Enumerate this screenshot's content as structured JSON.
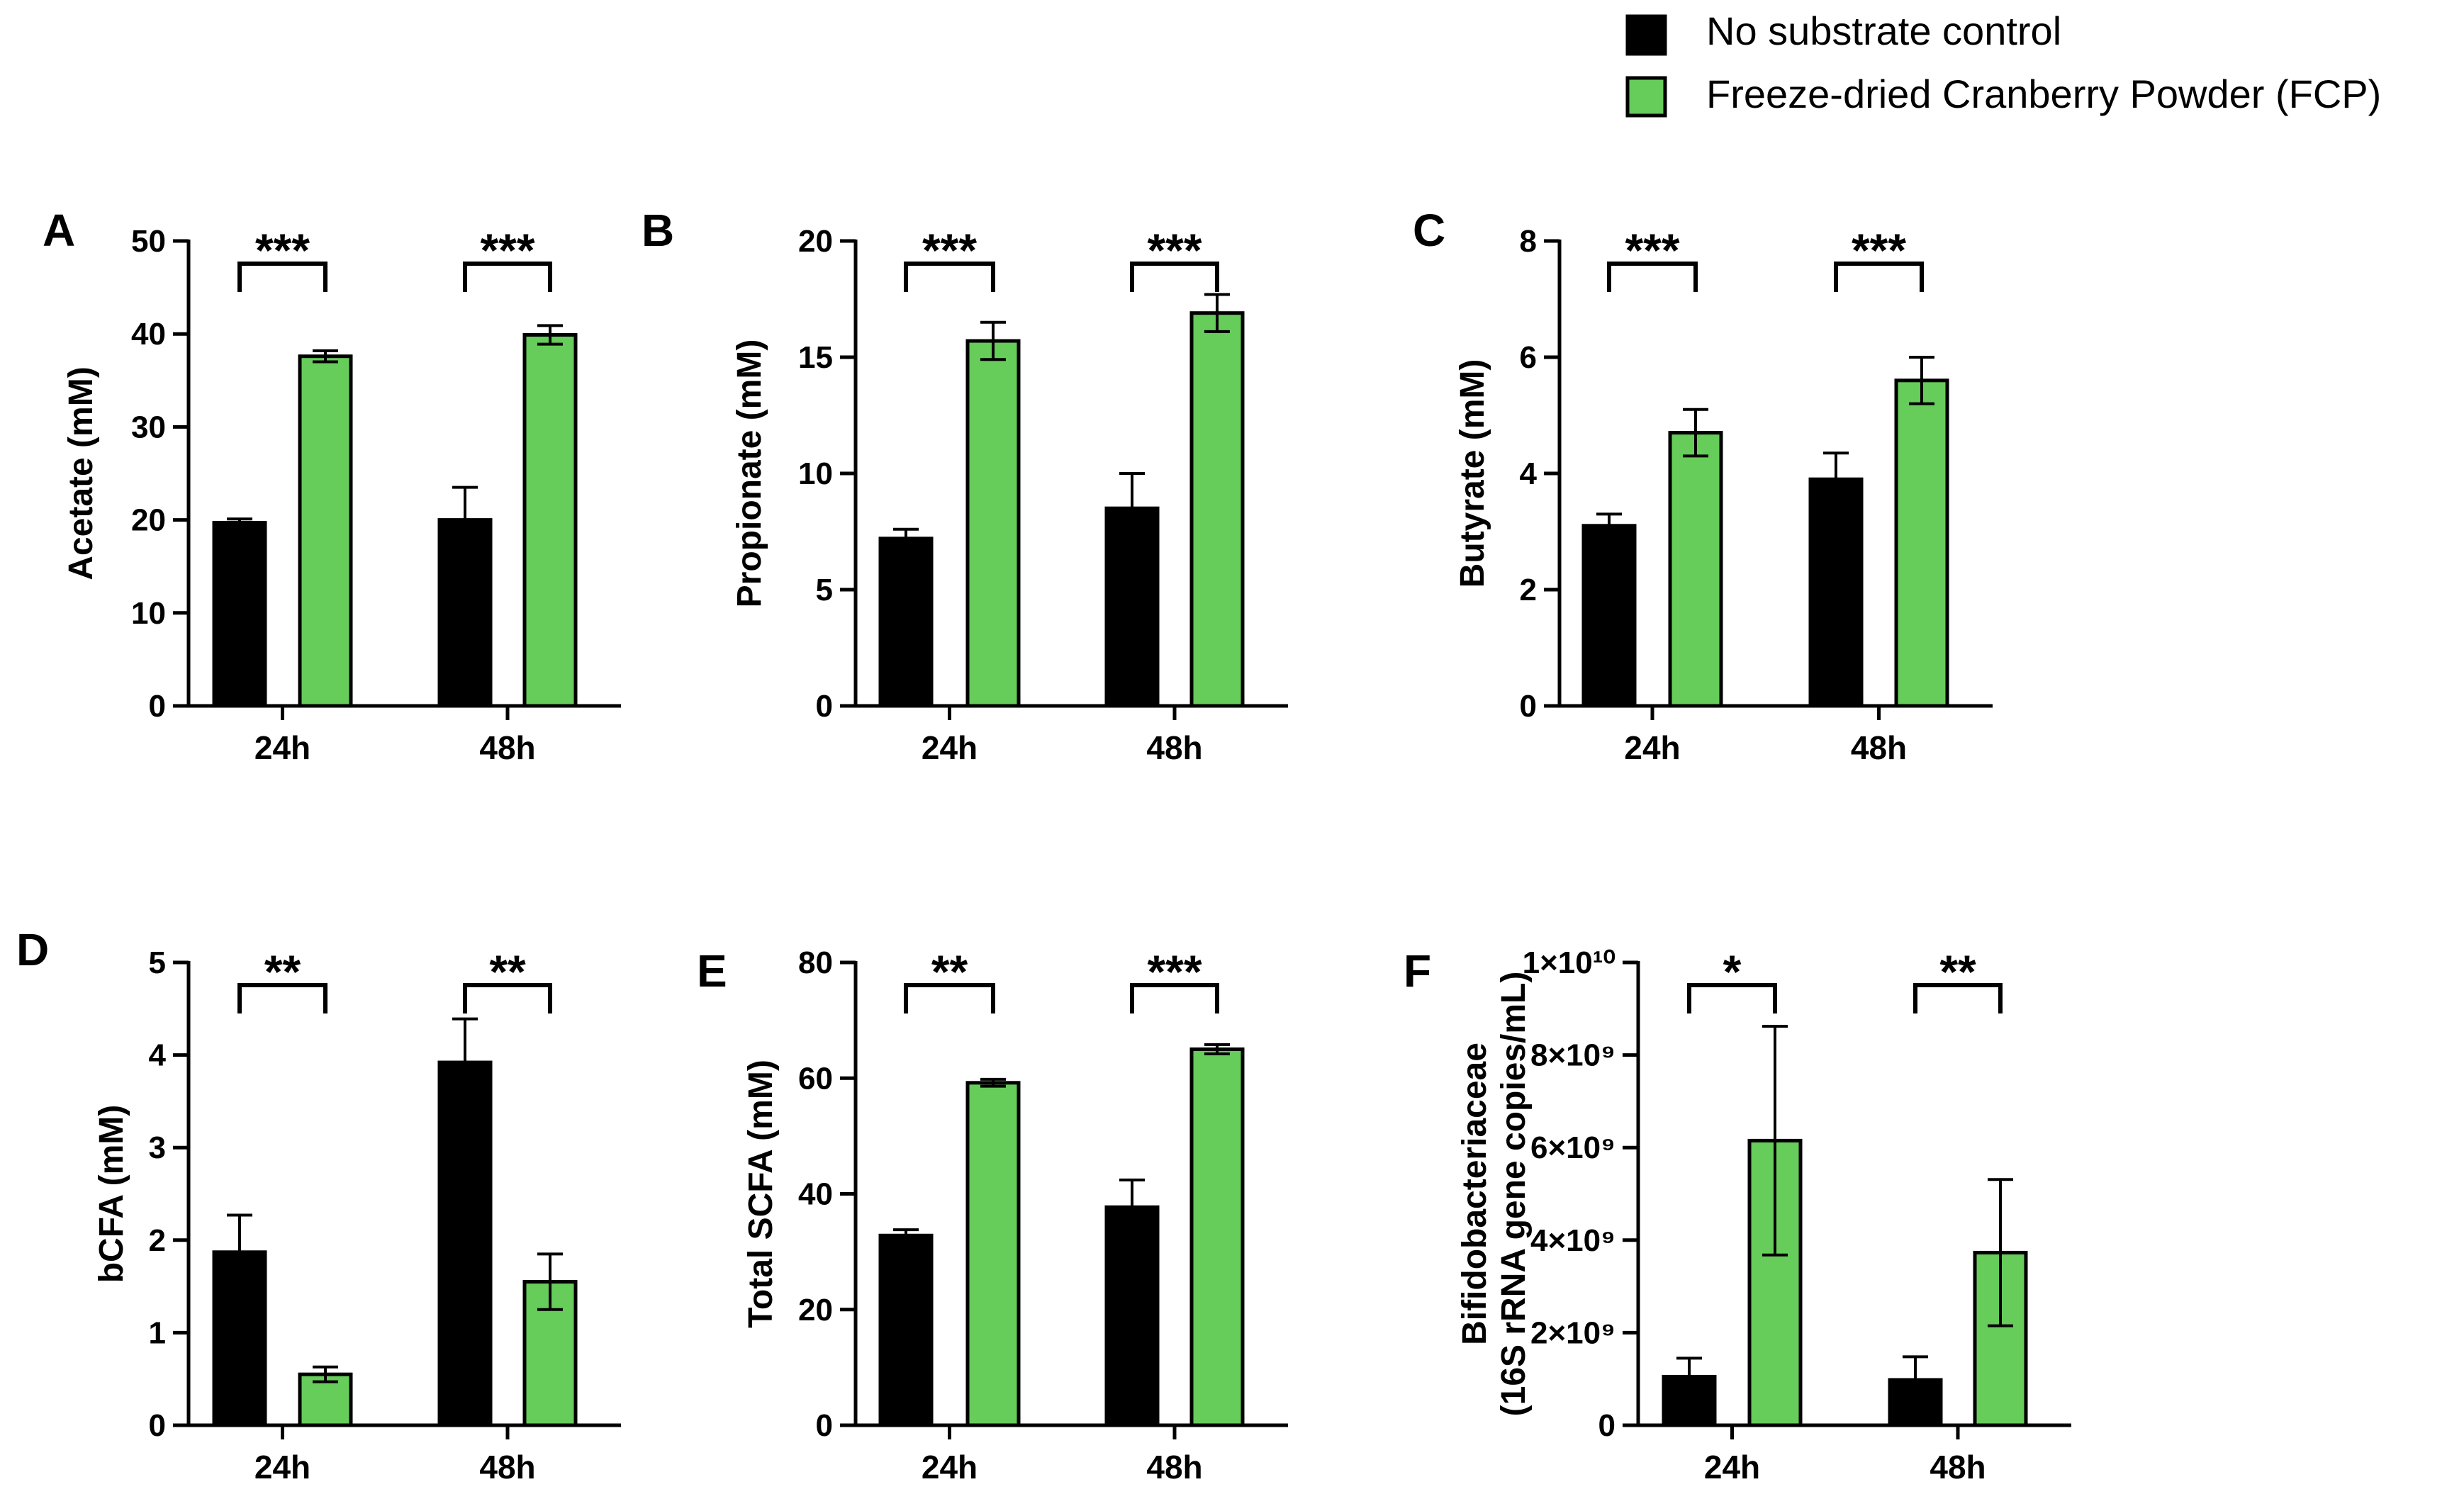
{
  "legend": {
    "items": [
      {
        "label": "No substrate control",
        "color": "#000000"
      },
      {
        "label": "Freeze-dried Cranberry Powder (FCP)",
        "color": "#66cc5a"
      }
    ]
  },
  "chart_data": [
    {
      "panel": "A",
      "type": "bar",
      "ylabel": "Acetate (mM)",
      "categories": [
        "24h",
        "48h"
      ],
      "ylim": [
        0,
        50
      ],
      "ytick_values": [
        0,
        10,
        20,
        30,
        40,
        50
      ],
      "ytick_labels": [
        "0",
        "10",
        "20",
        "30",
        "40",
        "50"
      ],
      "series": [
        {
          "name": "No substrate control",
          "values": [
            19.7,
            20.0
          ],
          "errors": [
            0.4,
            3.5
          ]
        },
        {
          "name": "Freeze-dried Cranberry Powder (FCP)",
          "values": [
            37.6,
            39.9
          ],
          "errors": [
            0.6,
            1.0
          ]
        }
      ],
      "significance": [
        "***",
        "***"
      ]
    },
    {
      "panel": "B",
      "type": "bar",
      "ylabel": "Propionate (mM)",
      "categories": [
        "24h",
        "48h"
      ],
      "ylim": [
        0,
        20
      ],
      "ytick_values": [
        0,
        5,
        10,
        15,
        20
      ],
      "ytick_labels": [
        "0",
        "5",
        "10",
        "15",
        "20"
      ],
      "series": [
        {
          "name": "No substrate control",
          "values": [
            7.2,
            8.5
          ],
          "errors": [
            0.4,
            1.5
          ]
        },
        {
          "name": "Freeze-dried Cranberry Powder (FCP)",
          "values": [
            15.7,
            16.9
          ],
          "errors": [
            0.8,
            0.8
          ]
        }
      ],
      "significance": [
        "***",
        "***"
      ]
    },
    {
      "panel": "C",
      "type": "bar",
      "ylabel": "Butyrate (mM)",
      "categories": [
        "24h",
        "48h"
      ],
      "ylim": [
        0,
        8
      ],
      "ytick_values": [
        0,
        2,
        4,
        6,
        8
      ],
      "ytick_labels": [
        "0",
        "2",
        "4",
        "6",
        "8"
      ],
      "series": [
        {
          "name": "No substrate control",
          "values": [
            3.1,
            3.9
          ],
          "errors": [
            0.2,
            0.45
          ]
        },
        {
          "name": "Freeze-dried Cranberry Powder (FCP)",
          "values": [
            4.7,
            5.6
          ],
          "errors": [
            0.4,
            0.4
          ]
        }
      ],
      "significance": [
        "***",
        "***"
      ]
    },
    {
      "panel": "D",
      "type": "bar",
      "ylabel": "bCFA (mM)",
      "categories": [
        "24h",
        "48h"
      ],
      "ylim": [
        0,
        5
      ],
      "ytick_values": [
        0,
        1,
        2,
        3,
        4,
        5
      ],
      "ytick_labels": [
        "0",
        "1",
        "2",
        "3",
        "4",
        "5"
      ],
      "series": [
        {
          "name": "No substrate control",
          "values": [
            1.87,
            3.92
          ],
          "errors": [
            0.4,
            0.47
          ]
        },
        {
          "name": "Freeze-dried Cranberry Powder (FCP)",
          "values": [
            0.55,
            1.55
          ],
          "errors": [
            0.08,
            0.3
          ]
        }
      ],
      "significance": [
        "**",
        "**"
      ]
    },
    {
      "panel": "E",
      "type": "bar",
      "ylabel": "Total SCFA (mM)",
      "categories": [
        "24h",
        "48h"
      ],
      "ylim": [
        0,
        80
      ],
      "ytick_values": [
        0,
        20,
        40,
        60,
        80
      ],
      "ytick_labels": [
        "0",
        "20",
        "40",
        "60",
        "80"
      ],
      "series": [
        {
          "name": "No substrate control",
          "values": [
            32.8,
            37.7
          ],
          "errors": [
            1.0,
            4.7
          ]
        },
        {
          "name": "Freeze-dried Cranberry Powder (FCP)",
          "values": [
            59.2,
            65.0
          ],
          "errors": [
            0.6,
            0.8
          ]
        }
      ],
      "significance": [
        "**",
        "***"
      ]
    },
    {
      "panel": "F",
      "type": "bar",
      "ylabel": "Bifidobacteriaceae",
      "ylabel2": "(16S rRNA gene copies/mL)",
      "categories": [
        "24h",
        "48h"
      ],
      "ylim": [
        0,
        10000000000
      ],
      "ytick_values": [
        0,
        2000000000,
        4000000000,
        6000000000,
        8000000000,
        10000000000
      ],
      "ytick_labels": [
        "0",
        "2×10⁹",
        "4×10⁹",
        "6×10⁹",
        "8×10⁹",
        "1×10¹⁰"
      ],
      "series": [
        {
          "name": "No substrate control",
          "values": [
            1050000000,
            980000000
          ],
          "errors": [
            400000000,
            500000000
          ]
        },
        {
          "name": "Freeze-dried Cranberry Powder (FCP)",
          "values": [
            6150000000,
            3730000000
          ],
          "errors": [
            2470000000,
            1580000000
          ]
        }
      ],
      "significance": [
        "*",
        "**"
      ]
    }
  ]
}
